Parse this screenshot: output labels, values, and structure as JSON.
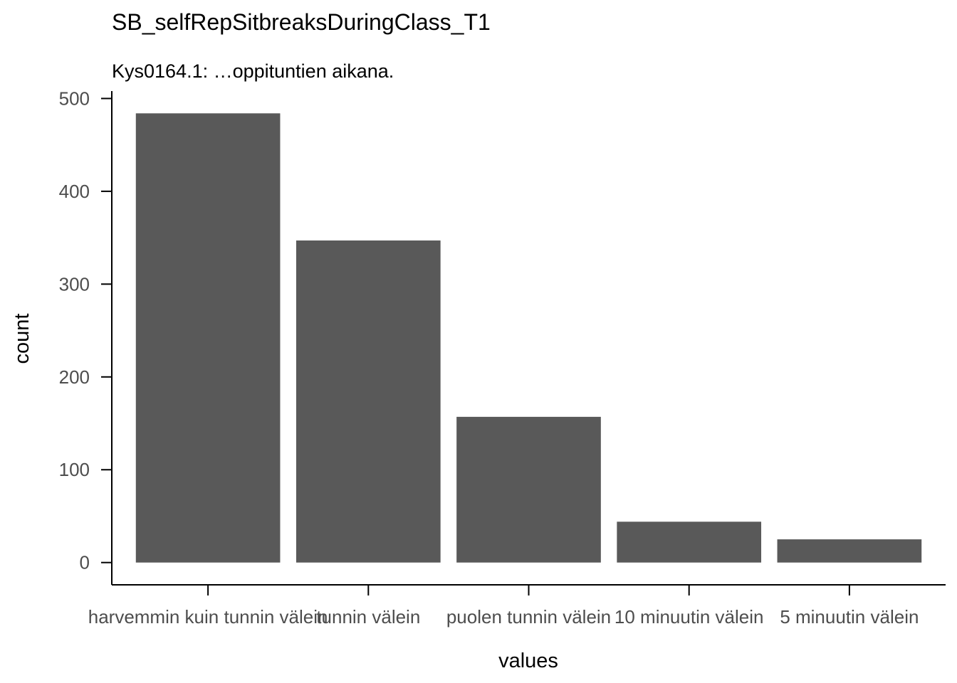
{
  "chart_data": {
    "type": "bar",
    "title": "SB_selfRepSitbreaksDuringClass_T1",
    "subtitle": "Kys0164.1: …oppituntien aikana.",
    "xlabel": "values",
    "ylabel": "count",
    "categories": [
      "harvemmin kuin tunnin välein",
      "tunnin välein",
      "puolen tunnin välein",
      "10 minuutin välein",
      "5 minuutin välein"
    ],
    "values": [
      484,
      347,
      157,
      44,
      25
    ],
    "ylim": [
      -24,
      508
    ],
    "yticks": [
      0,
      100,
      200,
      300,
      400,
      500
    ],
    "ytick_labels": [
      "0",
      "100",
      "200",
      "300",
      "400",
      "500"
    ],
    "grid": false,
    "legend": "none",
    "bar_color": "#595959"
  }
}
